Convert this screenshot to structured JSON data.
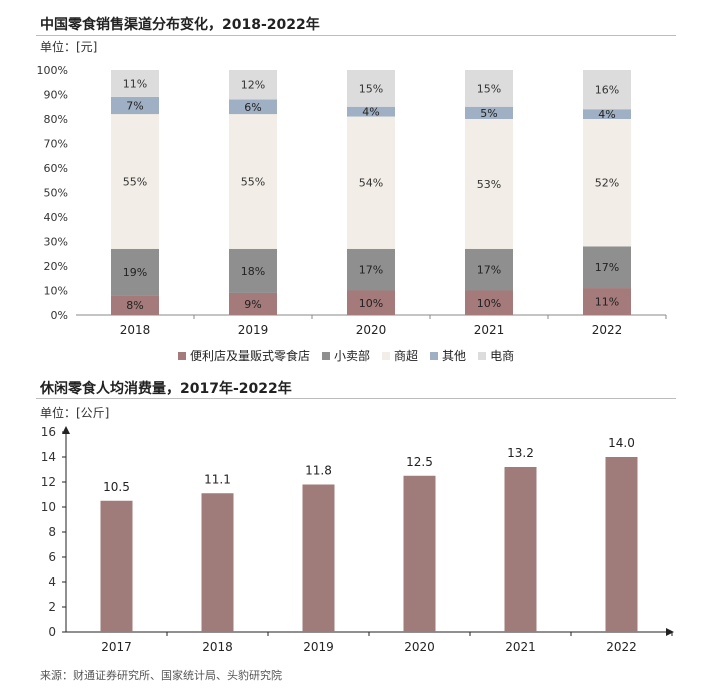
{
  "chart1": {
    "title": "中国零食销售渠道分布变化，2018-2022年",
    "unit": "单位：[元]"
  },
  "chart2": {
    "title": "休闲零食人均消费量，2017年-2022年",
    "unit": "单位：[公斤]"
  },
  "source": "来源：财通证券研究所、国家统计局、头豹研究院",
  "colors": {
    "convenience": "#a47a7a",
    "small_shop": "#8f8f8f",
    "supermarket": "#f2ede6",
    "other": "#9fb0c4",
    "ecommerce": "#dcdcdc",
    "bar2": "#9f7b79"
  },
  "chart_data": [
    {
      "type": "bar",
      "stacked": true,
      "categories": [
        "2018",
        "2019",
        "2020",
        "2021",
        "2022"
      ],
      "series": [
        {
          "name": "便利店及量贩式零食店",
          "values": [
            8,
            9,
            10,
            10,
            11
          ],
          "labels": [
            "8%",
            "9%",
            "10%",
            "10%",
            "11%"
          ]
        },
        {
          "name": "小卖部",
          "values": [
            19,
            18,
            17,
            17,
            17
          ],
          "labels": [
            "19%",
            "18%",
            "17%",
            "17%",
            "17%"
          ]
        },
        {
          "name": "商超",
          "values": [
            55,
            55,
            54,
            53,
            52
          ],
          "labels": [
            "55%",
            "55%",
            "54%",
            "53%",
            "52%"
          ]
        },
        {
          "name": "其他",
          "values": [
            7,
            6,
            4,
            5,
            4
          ],
          "labels": [
            "7%",
            "6%",
            "4%",
            "5%",
            "4%"
          ]
        },
        {
          "name": "电商",
          "values": [
            11,
            12,
            15,
            15,
            16
          ],
          "labels": [
            "11%",
            "12%",
            "15%",
            "15%",
            "16%"
          ]
        }
      ],
      "ylim": [
        0,
        100
      ],
      "yticks": [
        "0%",
        "10%",
        "20%",
        "30%",
        "40%",
        "50%",
        "60%",
        "70%",
        "80%",
        "90%",
        "100%"
      ],
      "legend_position": "bottom"
    },
    {
      "type": "bar",
      "categories": [
        "2017",
        "2018",
        "2019",
        "2020",
        "2021",
        "2022"
      ],
      "values": [
        10.5,
        11.1,
        11.8,
        12.5,
        13.2,
        14.0
      ],
      "labels": [
        "10.5",
        "11.1",
        "11.8",
        "12.5",
        "13.2",
        "14.0"
      ],
      "ylim": [
        0,
        16
      ],
      "yticks": [
        "0",
        "2",
        "4",
        "6",
        "8",
        "10",
        "12",
        "14",
        "16"
      ]
    }
  ]
}
